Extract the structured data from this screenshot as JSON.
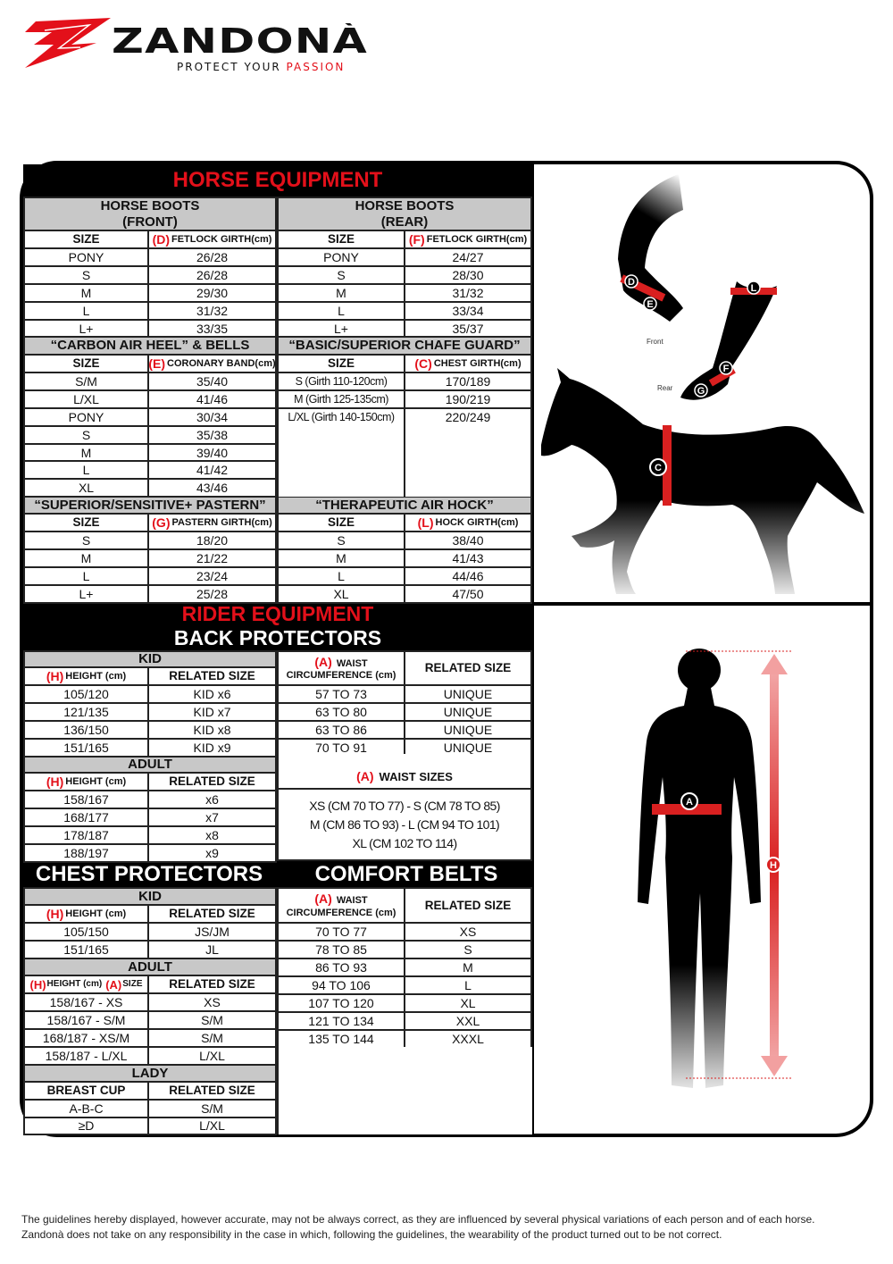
{
  "logo": {
    "brand": "ZANDONÀ",
    "tagline_a": "PROTECT YOUR",
    "tagline_b": "PASSION"
  },
  "horse": {
    "title": "HORSE EQUIPMENT",
    "boots_front": {
      "heading": [
        "HORSE BOOTS",
        "(FRONT)"
      ],
      "headers": [
        "SIZE",
        {
          "m": "(D)",
          "t": "FETLOCK GIRTH(cm)"
        }
      ],
      "rows": [
        [
          "PONY",
          "26/28"
        ],
        [
          "S",
          "26/28"
        ],
        [
          "M",
          "29/30"
        ],
        [
          "L",
          "31/32"
        ],
        [
          "L+",
          "33/35"
        ]
      ]
    },
    "boots_rear": {
      "heading": [
        "HORSE BOOTS",
        "(REAR)"
      ],
      "headers": [
        "SIZE",
        {
          "m": "(F)",
          "t": "FETLOCK GIRTH(cm)"
        }
      ],
      "rows": [
        [
          "PONY",
          "24/27"
        ],
        [
          "S",
          "28/30"
        ],
        [
          "M",
          "31/32"
        ],
        [
          "L",
          "33/34"
        ],
        [
          "L+",
          "35/37"
        ]
      ]
    },
    "carbon": {
      "heading": [
        "“CARBON AIR HEEL” & BELLS"
      ],
      "headers": [
        "SIZE",
        {
          "m": "(E)",
          "t": "CORONARY BAND(cm)"
        }
      ],
      "rows": [
        [
          "S/M",
          "35/40"
        ],
        [
          "L/XL",
          "41/46"
        ],
        [
          "PONY",
          "30/34"
        ],
        [
          "S",
          "35/38"
        ],
        [
          "M",
          "39/40"
        ],
        [
          "L",
          "41/42"
        ],
        [
          "XL",
          "43/46"
        ]
      ]
    },
    "chafe": {
      "heading": [
        "“BASIC/SUPERIOR CHAFE GUARD”"
      ],
      "headers": [
        "SIZE",
        {
          "m": "(C)",
          "t": "CHEST GIRTH(cm)"
        }
      ],
      "rows": [
        [
          "S (Girth 110-120cm)",
          "170/189"
        ],
        [
          "M (Girth 125-135cm)",
          "190/219"
        ],
        [
          "L/XL (Girth 140-150cm)",
          "220/249"
        ]
      ]
    },
    "pastern": {
      "heading": [
        "“SUPERIOR/SENSITIVE+ PASTERN”"
      ],
      "headers": [
        "SIZE",
        {
          "m": "(G)",
          "t": "PASTERN GIRTH(cm)"
        }
      ],
      "rows": [
        [
          "S",
          "18/20"
        ],
        [
          "M",
          "21/22"
        ],
        [
          "L",
          "23/24"
        ],
        [
          "L+",
          "25/28"
        ]
      ]
    },
    "hock": {
      "heading": [
        "“THERAPEUTIC AIR HOCK”"
      ],
      "headers": [
        "SIZE",
        {
          "m": "(L)",
          "t": "HOCK GIRTH(cm)"
        }
      ],
      "rows": [
        [
          "S",
          "38/40"
        ],
        [
          "M",
          "41/43"
        ],
        [
          "L",
          "44/46"
        ],
        [
          "XL",
          "47/50"
        ]
      ]
    },
    "illustration": {
      "front": "Front",
      "rear": "Rear",
      "markers": [
        "C",
        "D",
        "E",
        "F",
        "G",
        "L"
      ]
    }
  },
  "rider": {
    "title": "RIDER EQUIPMENT",
    "back_title": "BACK PROTECTORS",
    "back_kid": {
      "heading": [
        "KID"
      ],
      "headers": [
        {
          "m": "(H)",
          "t": "HEIGHT (cm)"
        },
        "RELATED SIZE"
      ],
      "rows": [
        [
          "105/120",
          "KID x6"
        ],
        [
          "121/135",
          "KID x7"
        ],
        [
          "136/150",
          "KID x8"
        ],
        [
          "151/165",
          "KID x9"
        ]
      ]
    },
    "back_waist": {
      "headers": [
        {
          "m": "(A)",
          "t": "WAIST",
          "t2": "CIRCUMFERENCE (cm)"
        },
        "RELATED SIZE"
      ],
      "rows": [
        [
          "57 TO 73",
          "UNIQUE"
        ],
        [
          "63 TO 80",
          "UNIQUE"
        ],
        [
          "63 TO 86",
          "UNIQUE"
        ],
        [
          "70 TO 91",
          "UNIQUE"
        ]
      ]
    },
    "back_adult": {
      "heading": [
        "ADULT"
      ],
      "headers": [
        {
          "m": "(H)",
          "t": "HEIGHT (cm)"
        },
        "RELATED SIZE"
      ],
      "rows": [
        [
          "158/167",
          "x6"
        ],
        [
          "168/177",
          "x7"
        ],
        [
          "178/187",
          "x8"
        ],
        [
          "188/197",
          "x9"
        ]
      ]
    },
    "waist_sizes": {
      "m": "(A)",
      "title": "WAIST SIZES",
      "lines": [
        "XS (CM 70 TO 77) - S (CM 78 TO 85)",
        "M (CM 86 TO 93) - L (CM 94 TO 101)",
        "XL (CM 102 TO 114)"
      ]
    },
    "chest_title": "CHEST PROTECTORS",
    "comfort_title": "COMFORT BELTS",
    "chest_kid": {
      "heading": [
        "KID"
      ],
      "headers": [
        {
          "m": "(H)",
          "t": "HEIGHT (cm)"
        },
        "RELATED SIZE"
      ],
      "rows": [
        [
          "105/150",
          "JS/JM"
        ],
        [
          "151/165",
          "JL"
        ]
      ]
    },
    "chest_adult": {
      "heading": [
        "ADULT"
      ],
      "headers": [
        {
          "m": "(H)",
          "t": "HEIGHT (cm)",
          "m2": "(A)",
          "t2": "SIZE"
        },
        "RELATED SIZE"
      ],
      "rows": [
        [
          "158/167 - XS",
          "XS"
        ],
        [
          "158/167 - S/M",
          "S/M"
        ],
        [
          "168/187 - XS/M",
          "S/M"
        ],
        [
          "158/187 - L/XL",
          "L/XL"
        ]
      ]
    },
    "chest_lady": {
      "heading": [
        "LADY"
      ],
      "headers": [
        "BREAST CUP",
        "RELATED SIZE"
      ],
      "rows": [
        [
          "A-B-C",
          "S/M"
        ],
        [
          "≥D",
          "L/XL"
        ]
      ]
    },
    "comfort": {
      "headers": [
        {
          "m": "(A)",
          "t": "WAIST",
          "t2": "CIRCUMFERENCE (cm)"
        },
        "RELATED SIZE"
      ],
      "rows": [
        [
          "70 TO 77",
          "XS"
        ],
        [
          "78 TO 85",
          "S"
        ],
        [
          "86 TO 93",
          "M"
        ],
        [
          "94 TO 106",
          "L"
        ],
        [
          "107 TO 120",
          "XL"
        ],
        [
          "121 TO 134",
          "XXL"
        ],
        [
          "135 TO 144",
          "XXXL"
        ]
      ]
    },
    "illustration": {
      "markers": [
        "A",
        "H"
      ]
    }
  },
  "footer": {
    "line1": "The guidelines hereby displayed, however accurate, may not be always correct, as they are influenced by several physical variations of each person and of each horse.",
    "line2": "Zandonà does not take on any responsibility in the case in which, following the guidelines, the wearability of the product turned out to be not correct."
  },
  "colors": {
    "accent": "#e3101a",
    "header_gray": "#c8c8c8"
  }
}
